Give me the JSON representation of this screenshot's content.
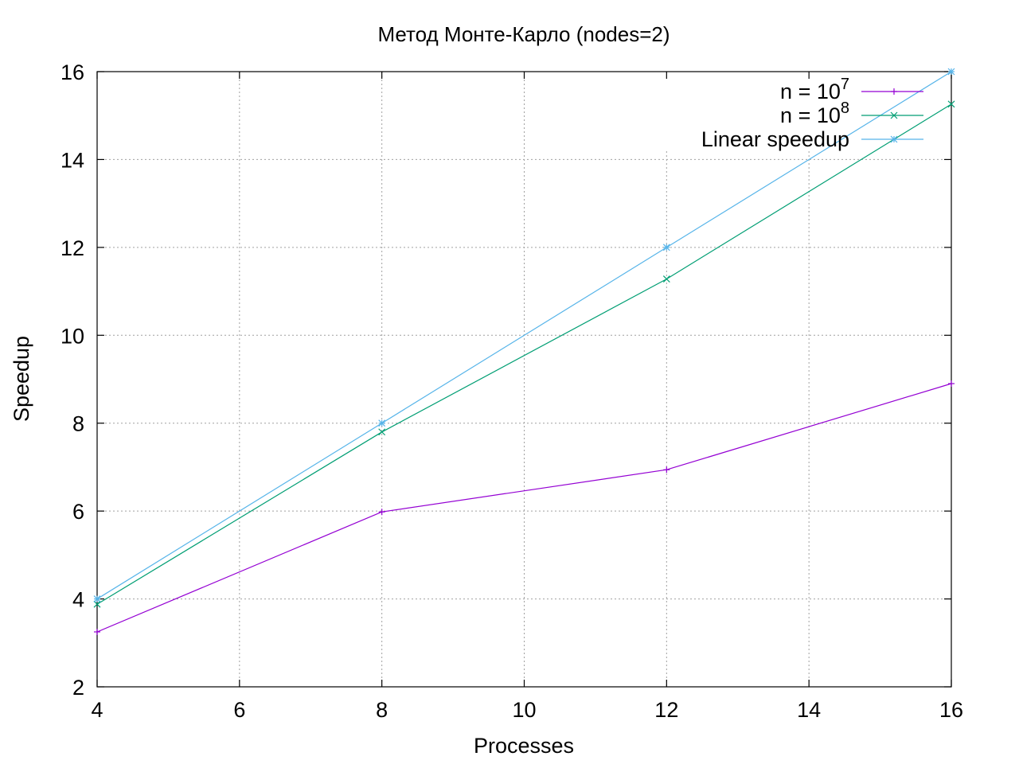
{
  "chart_data": {
    "type": "line",
    "title": "Метод Монте-Карло (nodes=2)",
    "xlabel": "Processes",
    "ylabel": "Speedup",
    "xlim": [
      4,
      16
    ],
    "ylim": [
      2,
      16
    ],
    "xticks": [
      "4",
      "6",
      "8",
      "10",
      "12",
      "14",
      "16"
    ],
    "yticks": [
      "2",
      "4",
      "6",
      "8",
      "10",
      "12",
      "14",
      "16"
    ],
    "grid": true,
    "legend_position": "top-right",
    "x": [
      4,
      8,
      12,
      16
    ],
    "series": [
      {
        "name": "n = 10",
        "name_sup": "7",
        "values": [
          3.25,
          5.98,
          6.94,
          8.9
        ],
        "color": "#9400d3",
        "marker": "plus"
      },
      {
        "name": "n = 10",
        "name_sup": "8",
        "values": [
          3.88,
          7.8,
          11.28,
          15.26
        ],
        "color": "#009e73",
        "marker": "cross"
      },
      {
        "name": "Linear speedup",
        "name_sup": "",
        "values": [
          4,
          8,
          12,
          16
        ],
        "color": "#56b4e9",
        "marker": "star"
      }
    ]
  }
}
